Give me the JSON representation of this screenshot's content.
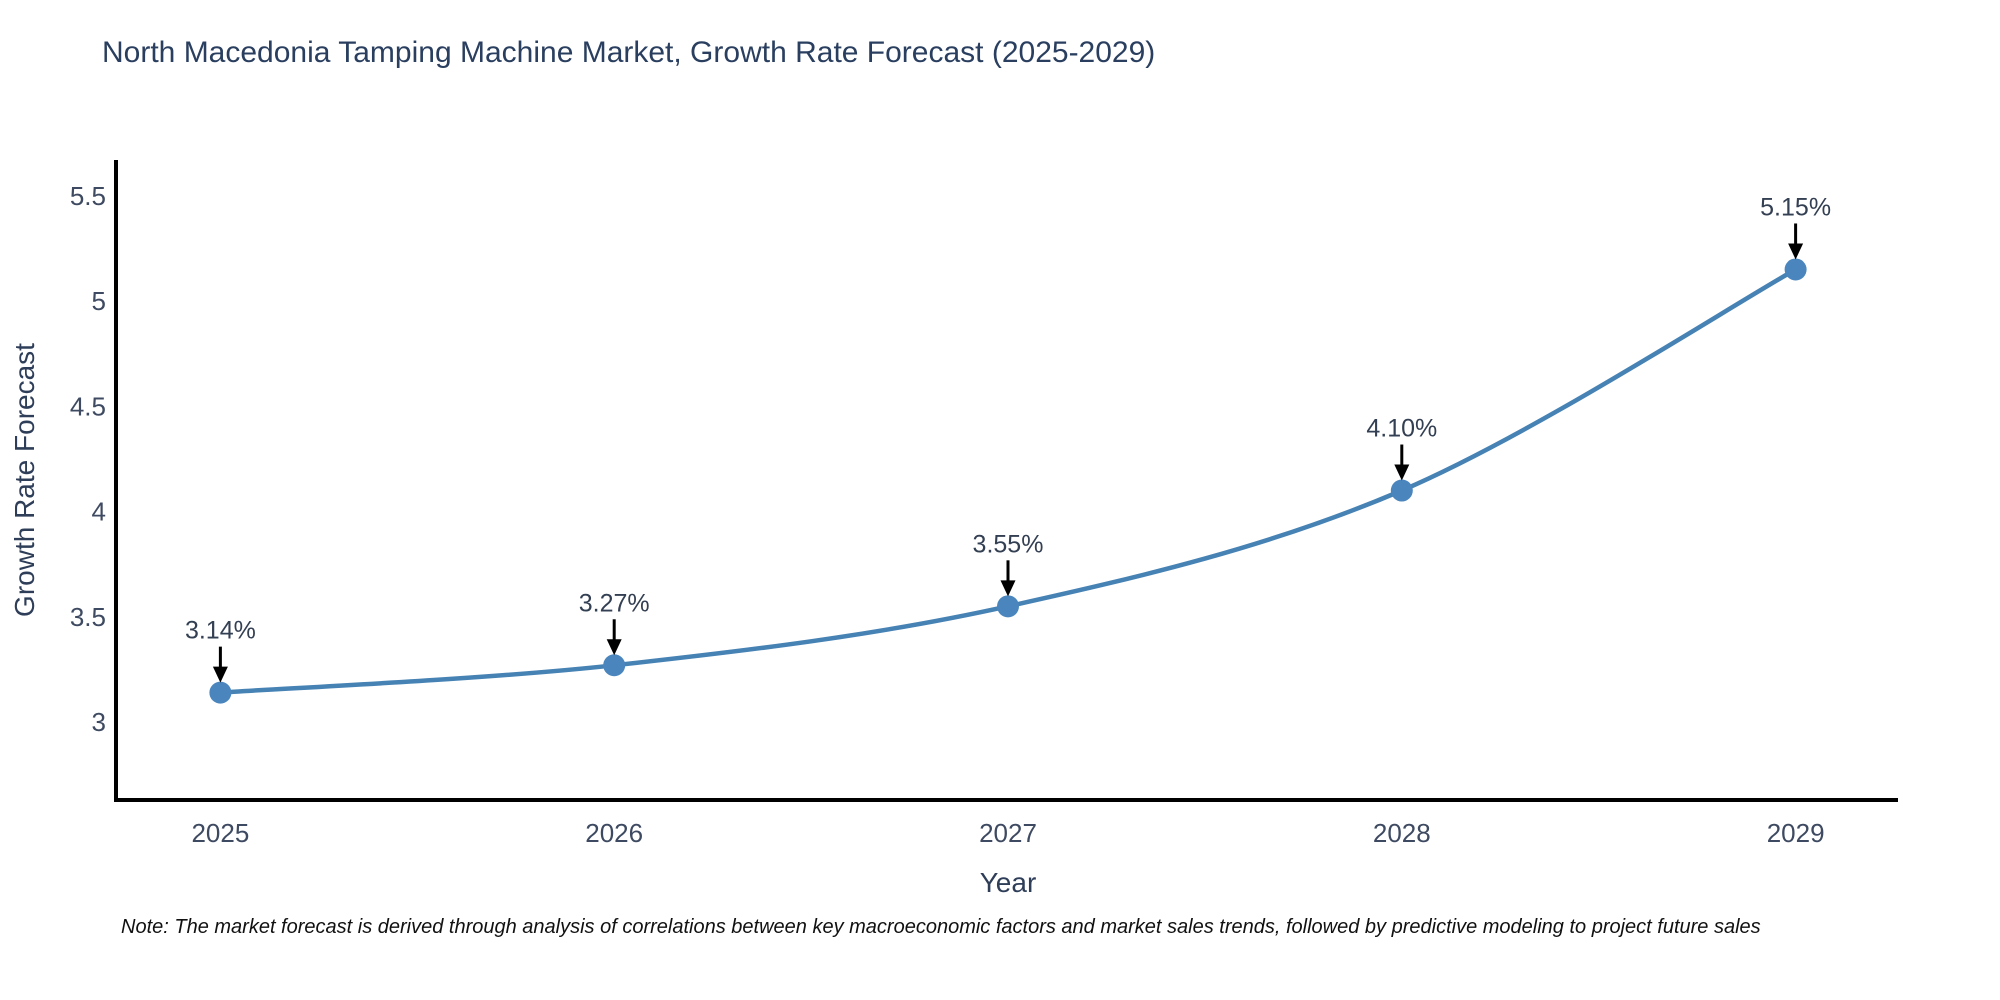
{
  "chart_data": {
    "type": "line",
    "title": "North Macedonia Tamping Machine Market, Growth Rate Forecast (2025-2029)",
    "xlabel": "Year",
    "ylabel": "Growth Rate Forecast",
    "x": [
      2025,
      2026,
      2027,
      2028,
      2029
    ],
    "series": [
      {
        "name": "Growth Rate Forecast",
        "values": [
          3.14,
          3.27,
          3.55,
          4.1,
          5.15
        ]
      }
    ],
    "point_labels": [
      "3.14%",
      "3.27%",
      "3.55%",
      "4.10%",
      "5.15%"
    ],
    "yticks": [
      3,
      3.5,
      4,
      4.5,
      5,
      5.5
    ],
    "ytick_labels": [
      "3",
      "3.5",
      "4",
      "4.5",
      "5",
      "5.5"
    ],
    "xtick_labels": [
      "2025",
      "2026",
      "2027",
      "2028",
      "2029"
    ],
    "ylim": [
      2.63,
      5.67
    ],
    "xlim": [
      2024.74,
      2029.26
    ],
    "grid": false,
    "legend": false,
    "line_color": "#4682b4",
    "marker_color": "#4a86bd",
    "spine_color": "#000000",
    "annotation_arrow_color": "#000000"
  },
  "note": {
    "text": "Note: The market forecast is derived through analysis of correlations between key macroeconomic factors and market sales trends, followed by predictive modeling to project future sales"
  }
}
